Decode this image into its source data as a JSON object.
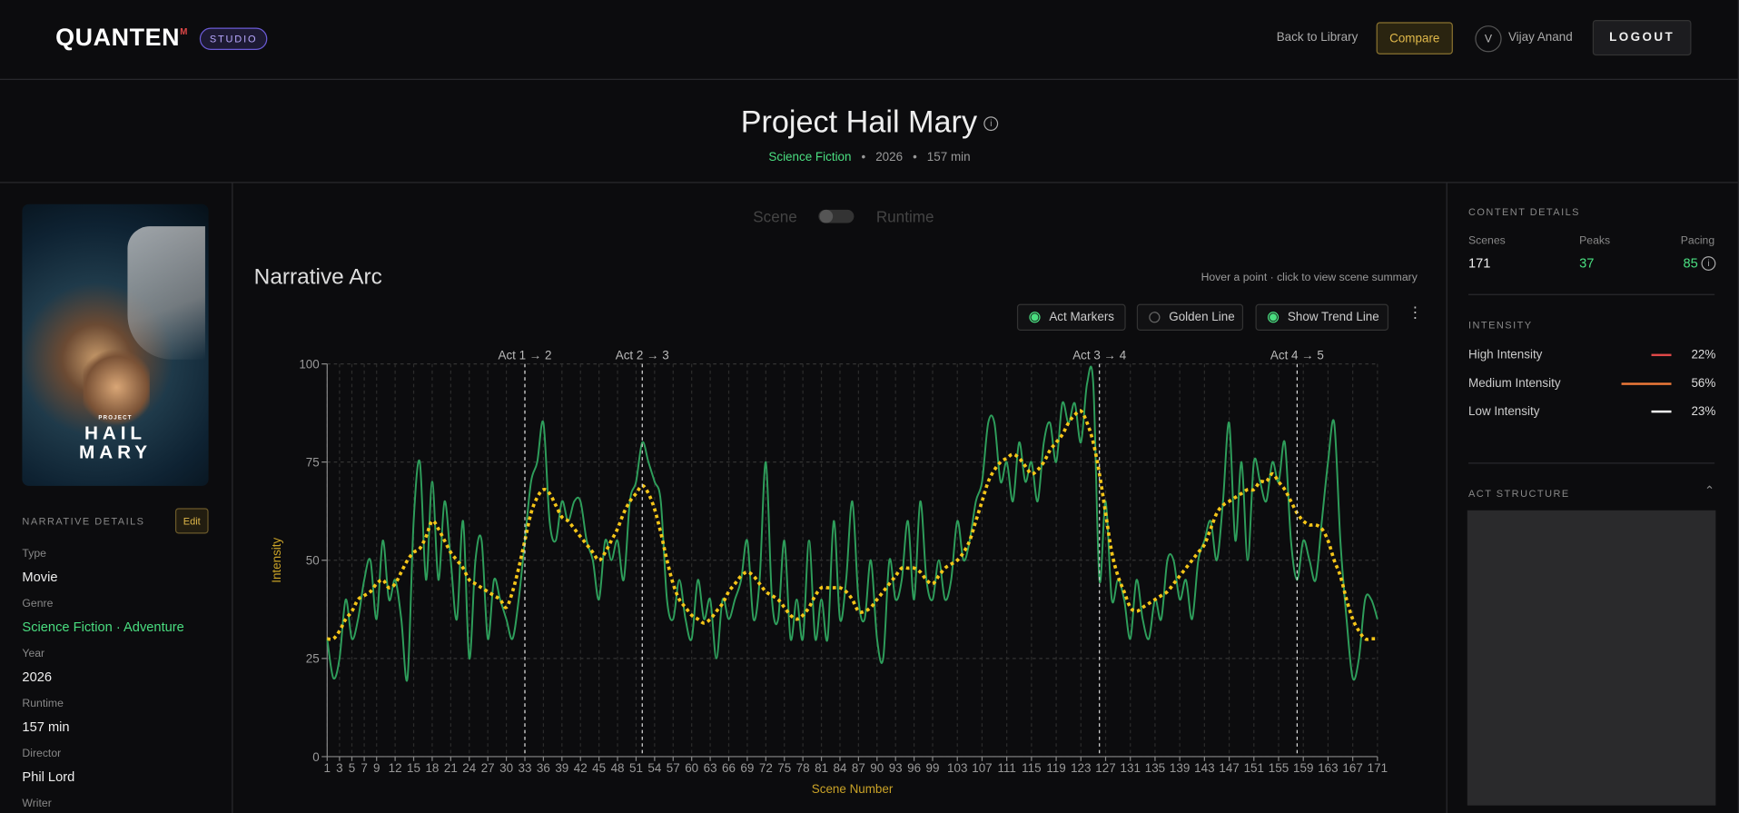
{
  "header": {
    "brand": "QUANTEN",
    "brand_mark": "M",
    "badge": "STUDIO",
    "back": "Back to Library",
    "compare": "Compare",
    "user_initial": "V",
    "user_name": "Vijay Anand",
    "logout": "LOGOUT"
  },
  "title": {
    "text": "Project Hail Mary",
    "genre": "Science Fiction",
    "year": "2026",
    "runtime": "157 min"
  },
  "poster": {
    "line1": "PROJECT",
    "line2": "HAIL",
    "line3": "MARY"
  },
  "narrative_details": {
    "heading": "NARRATIVE DETAILS",
    "edit": "Edit",
    "fields": [
      {
        "label": "Type",
        "value": "Movie"
      },
      {
        "label": "Genre",
        "value": "Science Fiction · Adventure"
      },
      {
        "label": "Year",
        "value": "2026"
      },
      {
        "label": "Runtime",
        "value": "157 min"
      },
      {
        "label": "Director",
        "value": "Phil Lord"
      },
      {
        "label": "Writer"
      }
    ]
  },
  "toggle": {
    "left": "Scene",
    "right": "Runtime"
  },
  "chart_header": {
    "title": "Narrative Arc",
    "hint": "Hover a point · click to view scene summary",
    "options": [
      {
        "label": "Act Markers",
        "on": true
      },
      {
        "label": "Golden Line",
        "on": false
      },
      {
        "label": "Show Trend Line",
        "on": true
      }
    ]
  },
  "chart_data": {
    "type": "line",
    "xlabel": "Scene Number",
    "ylabel": "Intensity",
    "grid": true,
    "xlim": [
      1,
      171
    ],
    "ylim": [
      0,
      100
    ],
    "yticks": [
      0,
      25,
      50,
      75,
      100
    ],
    "xticks": [
      1,
      3,
      5,
      7,
      9,
      12,
      15,
      18,
      21,
      24,
      27,
      30,
      33,
      36,
      39,
      42,
      45,
      48,
      51,
      54,
      57,
      60,
      63,
      66,
      69,
      72,
      75,
      78,
      81,
      84,
      87,
      90,
      93,
      96,
      99,
      103,
      107,
      111,
      115,
      119,
      123,
      127,
      131,
      135,
      139,
      143,
      147,
      151,
      155,
      159,
      163,
      167,
      171
    ],
    "x": [
      1,
      2,
      3,
      4,
      5,
      6,
      7,
      8,
      9,
      10,
      11,
      12,
      13,
      14,
      15,
      16,
      17,
      18,
      19,
      20,
      21,
      22,
      23,
      24,
      25,
      26,
      27,
      28,
      29,
      30,
      31,
      32,
      33,
      34,
      35,
      36,
      37,
      38,
      39,
      40,
      41,
      42,
      43,
      44,
      45,
      46,
      47,
      48,
      49,
      50,
      51,
      52,
      53,
      54,
      55,
      56,
      57,
      58,
      59,
      60,
      61,
      62,
      63,
      64,
      65,
      66,
      67,
      68,
      69,
      70,
      71,
      72,
      73,
      74,
      75,
      76,
      77,
      78,
      79,
      80,
      81,
      82,
      83,
      84,
      85,
      86,
      87,
      88,
      89,
      90,
      91,
      92,
      93,
      94,
      95,
      96,
      97,
      98,
      99,
      100,
      101,
      102,
      103,
      104,
      105,
      106,
      107,
      108,
      109,
      110,
      111,
      112,
      113,
      114,
      115,
      116,
      117,
      118,
      119,
      120,
      121,
      122,
      123,
      124,
      125,
      126,
      127,
      128,
      129,
      130,
      131,
      132,
      133,
      134,
      135,
      136,
      137,
      138,
      139,
      140,
      141,
      142,
      143,
      144,
      145,
      146,
      147,
      148,
      149,
      150,
      151,
      152,
      153,
      154,
      155,
      156,
      157,
      158,
      159,
      160,
      161,
      162,
      163,
      164,
      165,
      166,
      167,
      168,
      169,
      170,
      171
    ],
    "series": [
      {
        "color": "#2e9e5b",
        "style": "solid",
        "values": [
          30,
          20,
          25,
          40,
          30,
          35,
          45,
          50,
          35,
          55,
          40,
          45,
          35,
          20,
          60,
          75,
          45,
          70,
          45,
          65,
          50,
          35,
          60,
          25,
          50,
          55,
          30,
          45,
          40,
          35,
          30,
          40,
          55,
          70,
          75,
          85,
          60,
          55,
          65,
          60,
          65,
          65,
          55,
          50,
          40,
          55,
          50,
          55,
          45,
          65,
          70,
          80,
          75,
          70,
          65,
          40,
          35,
          45,
          35,
          30,
          45,
          35,
          40,
          25,
          40,
          35,
          40,
          45,
          55,
          35,
          45,
          75,
          40,
          35,
          55,
          30,
          40,
          30,
          55,
          30,
          40,
          30,
          60,
          35,
          45,
          65,
          40,
          35,
          50,
          30,
          25,
          50,
          40,
          45,
          60,
          40,
          65,
          45,
          40,
          50,
          40,
          45,
          60,
          50,
          55,
          65,
          70,
          85,
          85,
          70,
          75,
          65,
          80,
          70,
          75,
          65,
          80,
          85,
          75,
          90,
          85,
          90,
          80,
          95,
          95,
          45,
          65,
          40,
          45,
          40,
          30,
          45,
          35,
          30,
          40,
          35,
          50,
          50,
          40,
          45,
          35,
          50,
          55,
          60,
          50,
          65,
          85,
          55,
          75,
          50,
          75,
          70,
          65,
          75,
          70,
          80,
          55,
          45,
          55,
          50,
          45,
          60,
          75,
          85,
          55,
          35,
          20,
          25,
          40,
          40,
          35
        ]
      },
      {
        "color": "#f5c518",
        "style": "dotted",
        "values": [
          30,
          30,
          32,
          35,
          37,
          40,
          41,
          42,
          44,
          45,
          43,
          44,
          47,
          50,
          52,
          53,
          56,
          60,
          58,
          55,
          52,
          50,
          48,
          45,
          44,
          43,
          42,
          41,
          40,
          38,
          42,
          48,
          55,
          62,
          66,
          68,
          67,
          64,
          61,
          60,
          58,
          56,
          54,
          52,
          50,
          52,
          55,
          58,
          62,
          65,
          67,
          69,
          67,
          63,
          57,
          50,
          44,
          40,
          38,
          36,
          35,
          34,
          35,
          37,
          39,
          42,
          44,
          46,
          47,
          46,
          44,
          42,
          41,
          40,
          38,
          36,
          35,
          36,
          38,
          41,
          43,
          43,
          43,
          43,
          42,
          40,
          37,
          37,
          38,
          40,
          42,
          44,
          46,
          48,
          48,
          48,
          47,
          45,
          44,
          46,
          48,
          49,
          50,
          52,
          55,
          60,
          65,
          70,
          73,
          75,
          76,
          77,
          76,
          74,
          72,
          73,
          75,
          78,
          80,
          82,
          85,
          87,
          88,
          85,
          80,
          72,
          62,
          52,
          46,
          42,
          38,
          37,
          38,
          39,
          40,
          41,
          42,
          44,
          46,
          48,
          50,
          52,
          54,
          58,
          62,
          64,
          65,
          66,
          67,
          68,
          68,
          70,
          70,
          72,
          70,
          68,
          65,
          62,
          60,
          59,
          59,
          58,
          55,
          50,
          46,
          40,
          35,
          32,
          30,
          30,
          30
        ]
      }
    ],
    "act_markers": [
      {
        "label": "Act 1 → 2",
        "x": 33
      },
      {
        "label": "Act 2 → 3",
        "x": 52
      },
      {
        "label": "Act 3 → 4",
        "x": 126
      },
      {
        "label": "Act 4 → 5",
        "x": 158
      }
    ]
  },
  "content_details": {
    "heading": "CONTENT DETAILS",
    "stats": [
      {
        "label": "Scenes",
        "value": "171"
      },
      {
        "label": "Peaks",
        "value": "37"
      },
      {
        "label": "Pacing",
        "value": "85"
      }
    ],
    "intensity_heading": "INTENSITY",
    "intensity": [
      {
        "label": "High Intensity",
        "value": "22%",
        "color": "#e04848"
      },
      {
        "label": "Medium Intensity",
        "value": "56%",
        "color": "#f07a3a"
      },
      {
        "label": "Low Intensity",
        "value": "23%",
        "color": "#ffffff"
      }
    ],
    "act_structure": "ACT STRUCTURE"
  }
}
